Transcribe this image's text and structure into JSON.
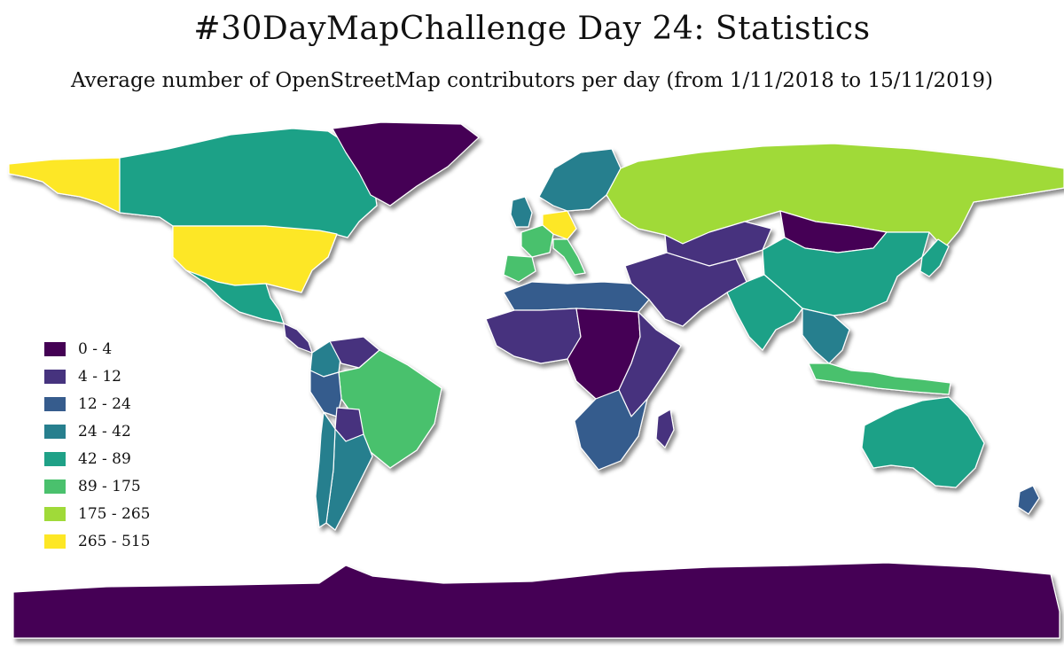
{
  "title": "#30DayMapChallenge Day 24: Statistics",
  "subtitle": "Average number of OpenStreetMap contributors per day (from 1/11/2018 to 15/11/2019)",
  "legend": {
    "classes": [
      {
        "label": "0 - 4",
        "color": "#440154"
      },
      {
        "label": "4 - 12",
        "color": "#46337e"
      },
      {
        "label": "12 - 24",
        "color": "#365c8d"
      },
      {
        "label": "24 - 42",
        "color": "#277f8e"
      },
      {
        "label": "42 - 89",
        "color": "#1fa187"
      },
      {
        "label": "89 - 175",
        "color": "#4ac16d"
      },
      {
        "label": "175 - 265",
        "color": "#a0da39"
      },
      {
        "label": "265 - 515",
        "color": "#fde725"
      }
    ]
  },
  "regions": [
    {
      "name": "alaska",
      "class": 7
    },
    {
      "name": "canada",
      "class": 4
    },
    {
      "name": "usa",
      "class": 7
    },
    {
      "name": "mexico",
      "class": 4
    },
    {
      "name": "central-america",
      "class": 1
    },
    {
      "name": "greenland",
      "class": 0
    },
    {
      "name": "colombia",
      "class": 3
    },
    {
      "name": "venezuela",
      "class": 1
    },
    {
      "name": "brazil",
      "class": 5
    },
    {
      "name": "peru",
      "class": 2
    },
    {
      "name": "bolivia",
      "class": 1
    },
    {
      "name": "argentina",
      "class": 3
    },
    {
      "name": "chile",
      "class": 3
    },
    {
      "name": "uk",
      "class": 3
    },
    {
      "name": "france",
      "class": 5
    },
    {
      "name": "germany",
      "class": 7
    },
    {
      "name": "spain",
      "class": 5
    },
    {
      "name": "italy",
      "class": 5
    },
    {
      "name": "scandinavia",
      "class": 3
    },
    {
      "name": "russia",
      "class": 6
    },
    {
      "name": "kazakhstan",
      "class": 1
    },
    {
      "name": "mongolia",
      "class": 0
    },
    {
      "name": "china",
      "class": 4
    },
    {
      "name": "india",
      "class": 4
    },
    {
      "name": "middle-east",
      "class": 1
    },
    {
      "name": "north-africa",
      "class": 2
    },
    {
      "name": "west-africa",
      "class": 1
    },
    {
      "name": "central-africa",
      "class": 0
    },
    {
      "name": "east-africa",
      "class": 1
    },
    {
      "name": "southern-africa",
      "class": 2
    },
    {
      "name": "madagascar",
      "class": 1
    },
    {
      "name": "southeast-asia",
      "class": 3
    },
    {
      "name": "japan",
      "class": 4
    },
    {
      "name": "indonesia",
      "class": 5
    },
    {
      "name": "australia",
      "class": 4
    },
    {
      "name": "new-zealand",
      "class": 2
    },
    {
      "name": "antarctica",
      "class": 0
    }
  ]
}
